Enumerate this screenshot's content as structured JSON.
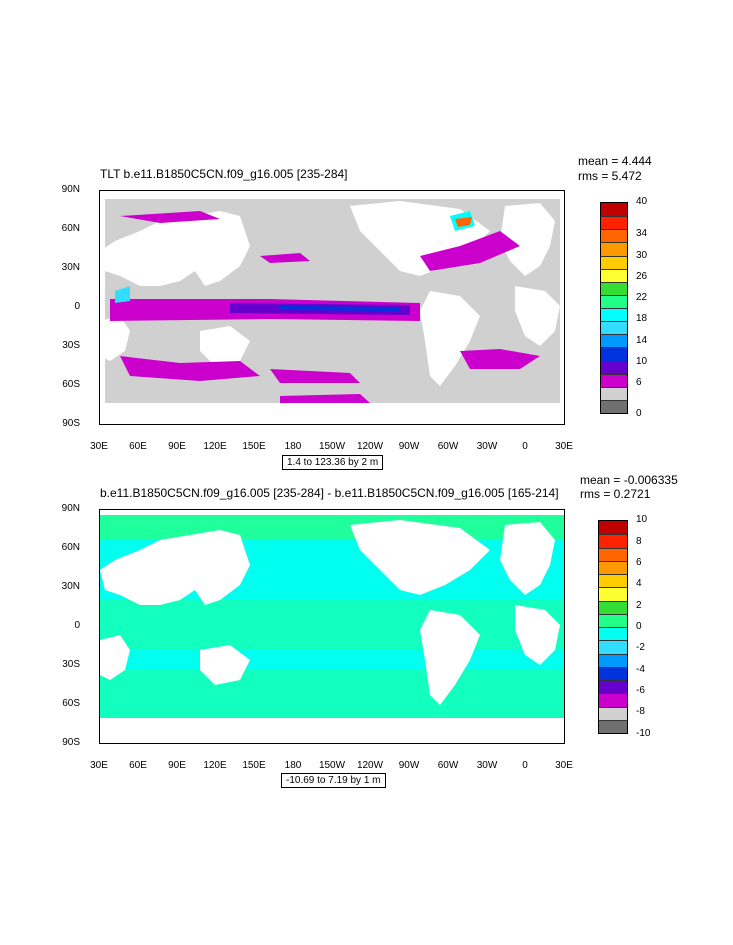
{
  "panels": [
    {
      "id": "top",
      "title": "TLT b.e11.B1850C5CN.f09_g16.005 [235-284]",
      "mean_text": "mean = 4.444",
      "rms_text": "rms = 5.472",
      "range_text": "1.4 to 123.36 by 2 m",
      "y_labels": [
        "90N",
        "60N",
        "30N",
        "0",
        "30S",
        "60S",
        "90S"
      ],
      "x_labels": [
        "30E",
        "60E",
        "90E",
        "120E",
        "150E",
        "180",
        "150W",
        "120W",
        "90W",
        "60W",
        "30W",
        "0",
        "30E"
      ],
      "colorbar": {
        "labels": [
          "40",
          "34",
          "30",
          "26",
          "22",
          "18",
          "14",
          "10",
          "6",
          "0"
        ],
        "colors": [
          "#c00000",
          "#ff2200",
          "#ff6600",
          "#ff9900",
          "#ffcc00",
          "#ffff33",
          "#33dd33",
          "#22ff88",
          "#00ffff",
          "#33ddff",
          "#0099ff",
          "#0033dd",
          "#6600cc",
          "#cc00cc",
          "#d0d0d0",
          "#707070"
        ]
      }
    },
    {
      "id": "bottom",
      "title": "b.e11.B1850C5CN.f09_g16.005 [235-284] - b.e11.B1850C5CN.f09_g16.005 [165-214]",
      "mean_text": "mean = -0.006335",
      "rms_text": "rms = 0.2721",
      "range_text": "-10.69 to 7.19 by 1 m",
      "y_labels": [
        "90N",
        "60N",
        "30N",
        "0",
        "30S",
        "60S",
        "90S"
      ],
      "x_labels": [
        "30E",
        "60E",
        "90E",
        "120E",
        "150E",
        "180",
        "150W",
        "120W",
        "90W",
        "60W",
        "30W",
        "0",
        "30E"
      ],
      "colorbar": {
        "labels": [
          "10",
          "8",
          "6",
          "4",
          "2",
          "0",
          "-2",
          "-4",
          "-6",
          "-8",
          "-10"
        ],
        "colors": [
          "#c00000",
          "#ff2200",
          "#ff6600",
          "#ff9900",
          "#ffcc00",
          "#ffff33",
          "#33dd33",
          "#22ff88",
          "#00ffee",
          "#33ddff",
          "#0099ff",
          "#0033dd",
          "#6600cc",
          "#cc00cc",
          "#d0d0d0",
          "#707070"
        ]
      }
    }
  ]
}
